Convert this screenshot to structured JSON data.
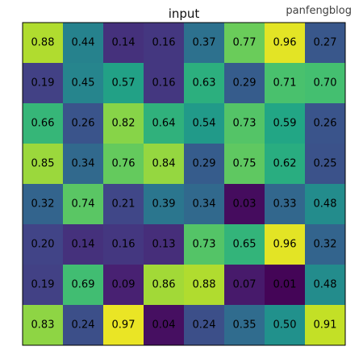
{
  "watermark": "panfengblog",
  "chart_data": {
    "type": "heatmap",
    "title": "input",
    "colormap": "viridis",
    "vmin": 0.0,
    "vmax": 1.0,
    "grid": false,
    "values": [
      [
        "0.88",
        "0.44",
        "0.14",
        "0.16",
        "0.37",
        "0.77",
        "0.96",
        "0.27"
      ],
      [
        "0.19",
        "0.45",
        "0.57",
        "0.16",
        "0.63",
        "0.29",
        "0.71",
        "0.70"
      ],
      [
        "0.66",
        "0.26",
        "0.82",
        "0.64",
        "0.54",
        "0.73",
        "0.59",
        "0.26"
      ],
      [
        "0.85",
        "0.34",
        "0.76",
        "0.84",
        "0.29",
        "0.75",
        "0.62",
        "0.25"
      ],
      [
        "0.32",
        "0.74",
        "0.21",
        "0.39",
        "0.34",
        "0.03",
        "0.33",
        "0.48"
      ],
      [
        "0.20",
        "0.14",
        "0.16",
        "0.13",
        "0.73",
        "0.65",
        "0.96",
        "0.32"
      ],
      [
        "0.19",
        "0.69",
        "0.09",
        "0.86",
        "0.88",
        "0.07",
        "0.01",
        "0.48"
      ],
      [
        "0.83",
        "0.24",
        "0.97",
        "0.04",
        "0.24",
        "0.35",
        "0.50",
        "0.91"
      ]
    ]
  }
}
